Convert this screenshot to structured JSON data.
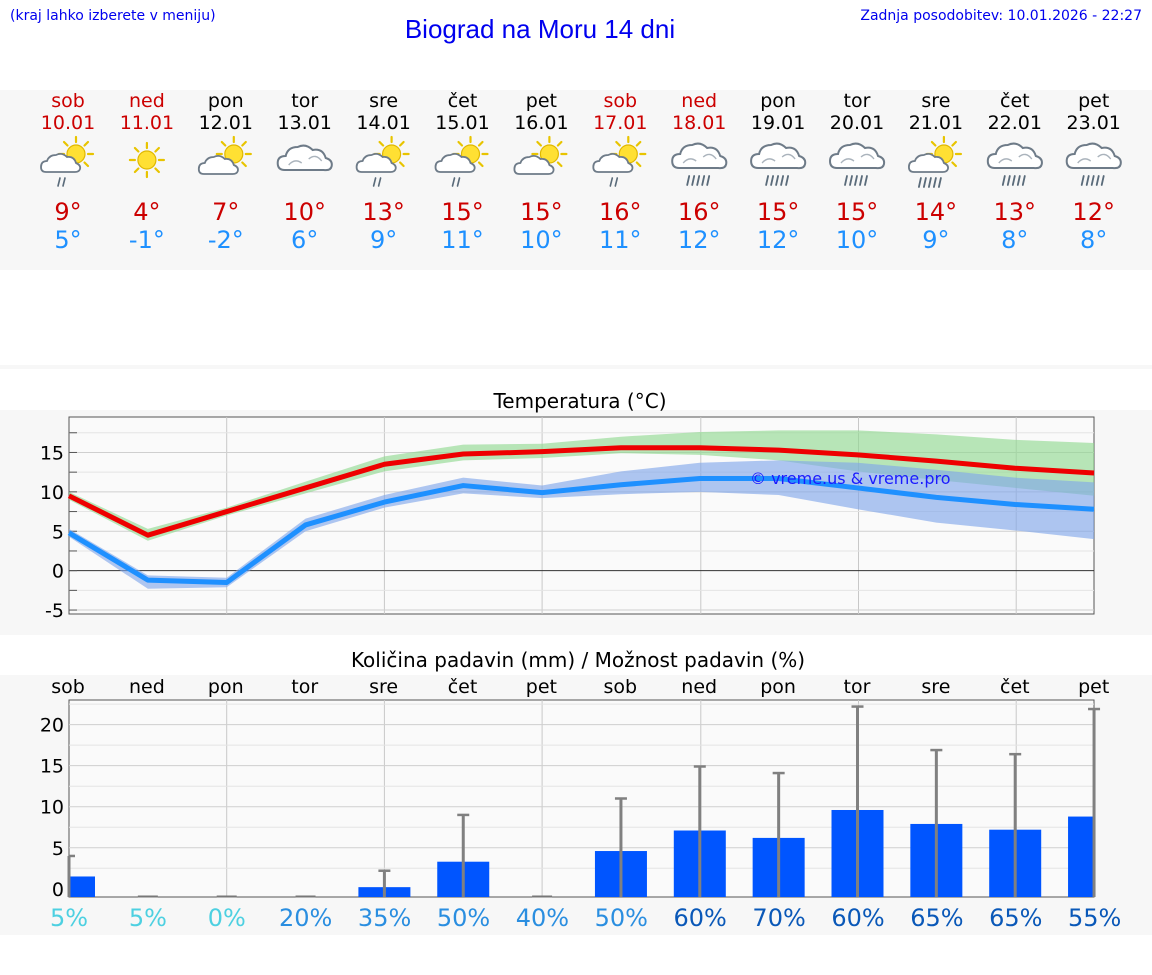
{
  "header": {
    "hint": "(kraj lahko izberete v meniju)",
    "title": "Biograd na Moru 14 dni",
    "updated": "Zadnja posodobitev: 10.01.2026 - 22:27"
  },
  "colors": {
    "weekend": "#cc0000",
    "weekday": "#000000",
    "max": "#cc0000",
    "min": "#1e90ff",
    "link": "#0000ee"
  },
  "days": [
    {
      "dow": "sob",
      "date": "10.01",
      "weekend": true,
      "icon": "partly-sunny-light-rain-icon",
      "max": "9°",
      "min": "5°",
      "pct": "5%"
    },
    {
      "dow": "ned",
      "date": "11.01",
      "weekend": true,
      "icon": "sunny-icon",
      "max": "4°",
      "min": "-1°",
      "pct": "5%"
    },
    {
      "dow": "pon",
      "date": "12.01",
      "weekend": false,
      "icon": "partly-sunny-icon",
      "max": "7°",
      "min": "-2°",
      "pct": "0%"
    },
    {
      "dow": "tor",
      "date": "13.01",
      "weekend": false,
      "icon": "cloudy-icon",
      "max": "10°",
      "min": "6°",
      "pct": "20%"
    },
    {
      "dow": "sre",
      "date": "14.01",
      "weekend": false,
      "icon": "partly-sunny-light-rain-icon",
      "max": "13°",
      "min": "9°",
      "pct": "35%"
    },
    {
      "dow": "čet",
      "date": "15.01",
      "weekend": false,
      "icon": "partly-sunny-light-rain-icon",
      "max": "15°",
      "min": "11°",
      "pct": "50%"
    },
    {
      "dow": "pet",
      "date": "16.01",
      "weekend": false,
      "icon": "partly-sunny-icon",
      "max": "15°",
      "min": "10°",
      "pct": "40%"
    },
    {
      "dow": "sob",
      "date": "17.01",
      "weekend": true,
      "icon": "partly-sunny-light-rain-icon",
      "max": "16°",
      "min": "11°",
      "pct": "50%"
    },
    {
      "dow": "ned",
      "date": "18.01",
      "weekend": true,
      "icon": "cloudy-rain-icon",
      "max": "16°",
      "min": "12°",
      "pct": "60%"
    },
    {
      "dow": "pon",
      "date": "19.01",
      "weekend": false,
      "icon": "cloudy-rain-icon",
      "max": "15°",
      "min": "12°",
      "pct": "70%"
    },
    {
      "dow": "tor",
      "date": "20.01",
      "weekend": false,
      "icon": "cloudy-rain-icon",
      "max": "15°",
      "min": "10°",
      "pct": "60%"
    },
    {
      "dow": "sre",
      "date": "21.01",
      "weekend": false,
      "icon": "partly-sunny-rain-icon",
      "max": "14°",
      "min": "9°",
      "pct": "65%"
    },
    {
      "dow": "čet",
      "date": "22.01",
      "weekend": false,
      "icon": "cloudy-rain-icon",
      "max": "13°",
      "min": "8°",
      "pct": "65%"
    },
    {
      "dow": "pet",
      "date": "23.01",
      "weekend": false,
      "icon": "cloudy-rain-icon",
      "max": "12°",
      "min": "8°",
      "pct": "55%"
    }
  ],
  "chart_data": [
    {
      "type": "line",
      "title": "Temperatura (°C)",
      "ylim": [
        -5.5,
        19.5
      ],
      "yticks": [
        "-5",
        "0",
        "5",
        "10",
        "15"
      ],
      "x": [
        0,
        1,
        2,
        3,
        4,
        5,
        6,
        7,
        8,
        9,
        10,
        11,
        12,
        13
      ],
      "series": [
        {
          "name": "max",
          "values": [
            9.5,
            4.5,
            7.5,
            10.5,
            13.5,
            14.8,
            15.1,
            15.6,
            15.6,
            15.3,
            14.7,
            13.9,
            13.0,
            12.4
          ]
        },
        {
          "name": "min",
          "values": [
            4.8,
            -1.2,
            -1.5,
            5.8,
            8.7,
            10.8,
            9.9,
            10.9,
            11.7,
            11.7,
            10.5,
            9.3,
            8.4,
            7.8
          ]
        }
      ],
      "bands": [
        {
          "name": "max-range",
          "low": [
            9.0,
            3.8,
            7.0,
            9.8,
            12.6,
            14.0,
            14.3,
            14.9,
            14.7,
            14.0,
            12.6,
            11.5,
            10.5,
            9.5
          ],
          "high": [
            10.0,
            5.3,
            8.0,
            11.3,
            14.5,
            16.0,
            16.1,
            17.0,
            17.6,
            17.8,
            17.8,
            17.3,
            16.6,
            16.2
          ]
        },
        {
          "name": "min-range",
          "low": [
            4.3,
            -2.3,
            -2.1,
            5.0,
            8.0,
            9.8,
            9.2,
            9.7,
            10.0,
            9.6,
            7.8,
            6.1,
            5.1,
            4.0
          ],
          "high": [
            5.3,
            -0.6,
            -0.9,
            6.6,
            9.6,
            11.8,
            10.8,
            12.6,
            13.7,
            14.0,
            13.7,
            12.8,
            11.8,
            11.2
          ]
        }
      ],
      "watermark": "© vreme.us & vreme.pro"
    },
    {
      "type": "bar",
      "title": "Količina padavin (mm) / Možnost padavin (%)",
      "ylim": [
        -1,
        23
      ],
      "yticks": [
        "0",
        "5",
        "10",
        "15",
        "20"
      ],
      "categories": [
        "sob",
        "ned",
        "pon",
        "tor",
        "sre",
        "čet",
        "pet",
        "sob",
        "ned",
        "pon",
        "tor",
        "sre",
        "čet",
        "pet"
      ],
      "values": [
        1.5,
        0.1,
        0.1,
        0.1,
        0.2,
        3.3,
        0.1,
        4.6,
        7.1,
        6.2,
        9.6,
        7.9,
        7.2,
        8.8
      ],
      "error_high": [
        4.0,
        0.1,
        0.1,
        0.1,
        2.2,
        9.0,
        0.1,
        11.0,
        14.9,
        14.1,
        22.2,
        16.9,
        16.4,
        21.9
      ],
      "chance": [
        "5%",
        "5%",
        "0%",
        "20%",
        "35%",
        "50%",
        "40%",
        "50%",
        "60%",
        "70%",
        "60%",
        "65%",
        "65%",
        "55%"
      ]
    }
  ]
}
